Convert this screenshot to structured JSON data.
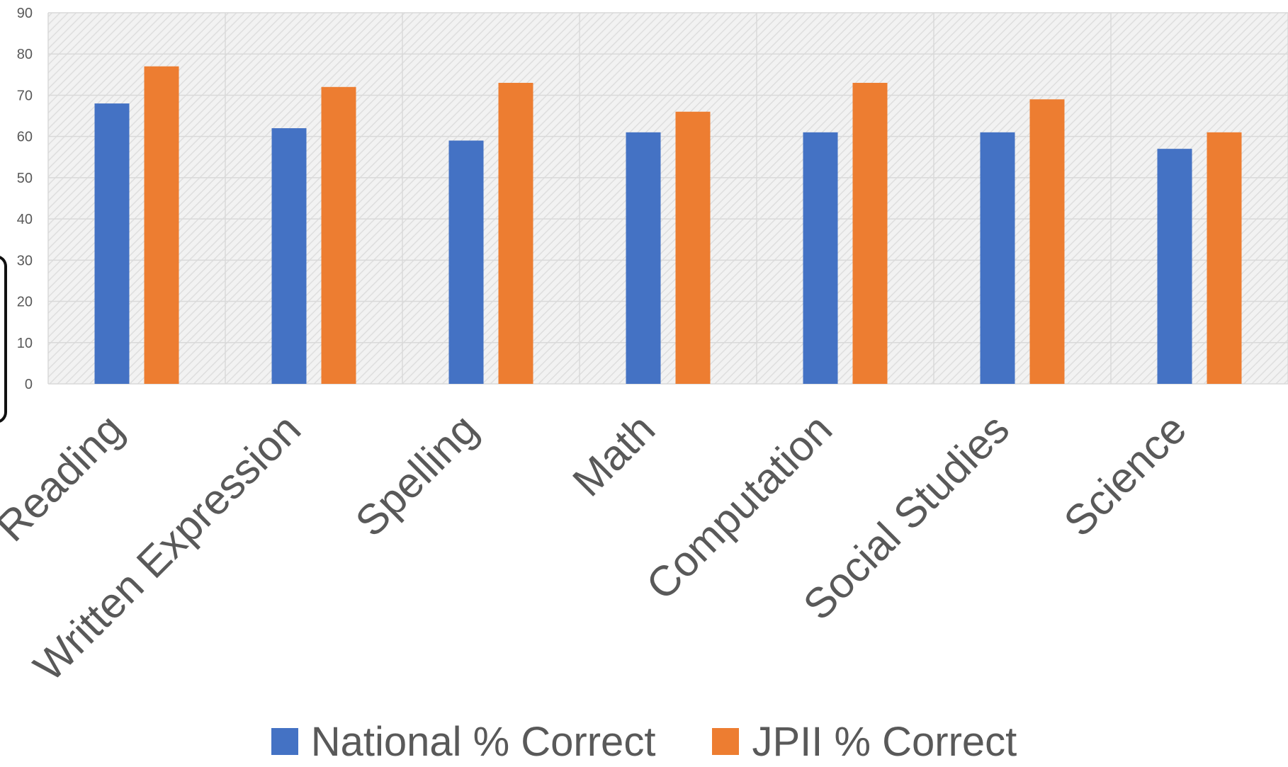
{
  "chart_data": {
    "type": "bar",
    "categories": [
      "Reading",
      "Written Expression",
      "Spelling",
      "Math",
      "Computation",
      "Social Studies",
      "Science"
    ],
    "series": [
      {
        "name": "National % Correct",
        "color": "#4472C4",
        "values": [
          68,
          62,
          59,
          61,
          61,
          61,
          57
        ]
      },
      {
        "name": "JPII % Correct",
        "color": "#ED7D31",
        "values": [
          77,
          72,
          73,
          66,
          73,
          69,
          61
        ]
      }
    ],
    "y_ticks": [
      "0",
      "10",
      "20",
      "30",
      "40",
      "50",
      "60",
      "70",
      "80",
      "90"
    ],
    "ylim": [
      0,
      90
    ],
    "title": "",
    "xlabel": "",
    "ylabel": "",
    "grid": true,
    "legend_position": "bottom"
  }
}
